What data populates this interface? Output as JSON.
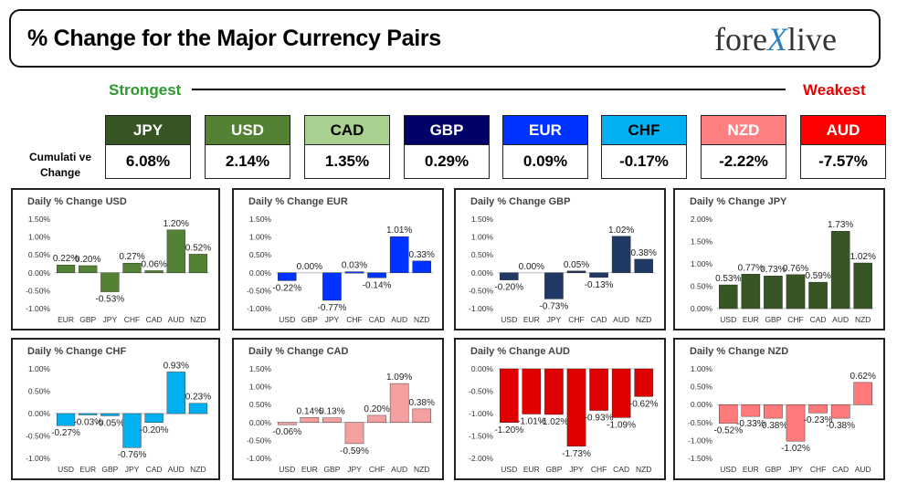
{
  "header": {
    "title": "% Change for the Major Currency Pairs",
    "logo_left": "fore",
    "logo_x": "X",
    "logo_right": "live"
  },
  "ranking": {
    "strongest_label": "Strongest",
    "weakest_label": "Weakest",
    "cumulative_label_line1": "Cumulati ve",
    "cumulative_label_line2": "Change",
    "currencies": [
      {
        "name": "JPY",
        "value": "6.08%",
        "color": "#375623"
      },
      {
        "name": "USD",
        "value": "2.14%",
        "color": "#548235"
      },
      {
        "name": "CAD",
        "value": "1.35%",
        "color": "#a9d08e",
        "text_color": "#000000"
      },
      {
        "name": "GBP",
        "value": "0.29%",
        "color": "#000066"
      },
      {
        "name": "EUR",
        "value": "0.09%",
        "color": "#0033ff"
      },
      {
        "name": "CHF",
        "value": "-0.17%",
        "color": "#00b0f0",
        "text_color": "#000000"
      },
      {
        "name": "NZD",
        "value": "-2.22%",
        "color": "#ff8080"
      },
      {
        "name": "AUD",
        "value": "-7.57%",
        "color": "#ff0000"
      }
    ]
  },
  "chart_data": [
    {
      "type": "bar",
      "title": "Daily % Change USD",
      "categories": [
        "EUR",
        "GBP",
        "JPY",
        "CHF",
        "CAD",
        "AUD",
        "NZD"
      ],
      "values": [
        0.22,
        0.2,
        -0.53,
        0.27,
        0.06,
        1.2,
        0.52
      ],
      "labels": [
        "0.22%",
        "0.20%",
        "-0.53%",
        "0.27%",
        "0.06%",
        "1.20%",
        "0.52%"
      ],
      "ylim": [
        -1.0,
        1.5
      ],
      "yticks": [
        "1.50%",
        "1.00%",
        "0.50%",
        "0.00%",
        "-0.50%",
        "-1.00%"
      ],
      "color": "#548235"
    },
    {
      "type": "bar",
      "title": "Daily % Change EUR",
      "categories": [
        "USD",
        "GBP",
        "JPY",
        "CHF",
        "CAD",
        "AUD",
        "NZD"
      ],
      "values": [
        -0.22,
        0.0,
        -0.77,
        0.03,
        -0.14,
        1.01,
        0.33
      ],
      "labels": [
        "-0.22%",
        "0.00%",
        "-0.77%",
        "0.03%",
        "-0.14%",
        "1.01%",
        "0.33%"
      ],
      "ylim": [
        -1.0,
        1.5
      ],
      "yticks": [
        "1.50%",
        "1.00%",
        "0.50%",
        "0.00%",
        "-0.50%",
        "-1.00%"
      ],
      "color": "#0033ff"
    },
    {
      "type": "bar",
      "title": "Daily % Change GBP",
      "categories": [
        "USD",
        "EUR",
        "JPY",
        "CHF",
        "CAD",
        "AUD",
        "NZD"
      ],
      "values": [
        -0.2,
        0.0,
        -0.73,
        0.05,
        -0.13,
        1.02,
        0.38
      ],
      "labels": [
        "-0.20%",
        "0.00%",
        "-0.73%",
        "0.05%",
        "-0.13%",
        "1.02%",
        "0.38%"
      ],
      "ylim": [
        -1.0,
        1.5
      ],
      "yticks": [
        "1.50%",
        "1.00%",
        "0.50%",
        "0.00%",
        "-0.50%",
        "-1.00%"
      ],
      "color": "#1f3864"
    },
    {
      "type": "bar",
      "title": "Daily % Change JPY",
      "categories": [
        "USD",
        "EUR",
        "GBP",
        "CHF",
        "CAD",
        "AUD",
        "NZD"
      ],
      "values": [
        0.53,
        0.77,
        0.73,
        0.76,
        0.59,
        1.73,
        1.02
      ],
      "labels": [
        "0.53%",
        "0.77%",
        "0.73%",
        "0.76%",
        "0.59%",
        "1.73%",
        "1.02%"
      ],
      "ylim": [
        0,
        2.0
      ],
      "yticks": [
        "2.00%",
        "1.50%",
        "1.00%",
        "0.50%",
        "0.00%"
      ],
      "color": "#375623"
    },
    {
      "type": "bar",
      "title": "Daily % Change CHF",
      "categories": [
        "USD",
        "EUR",
        "GBP",
        "JPY",
        "CAD",
        "AUD",
        "NZD"
      ],
      "values": [
        -0.27,
        -0.03,
        -0.05,
        -0.76,
        -0.2,
        0.93,
        0.23
      ],
      "labels": [
        "-0.27%",
        "-0.03%",
        "-0.05%",
        "-0.76%",
        "-0.20%",
        "0.93%",
        "0.23%"
      ],
      "ylim": [
        -1.0,
        1.0
      ],
      "yticks": [
        "1.00%",
        "0.50%",
        "0.00%",
        "-0.50%",
        "-1.00%"
      ],
      "color": "#00b0f0"
    },
    {
      "type": "bar",
      "title": "Daily % Change CAD",
      "categories": [
        "USD",
        "EUR",
        "GBP",
        "JPY",
        "CHF",
        "AUD",
        "NZD"
      ],
      "values": [
        -0.06,
        0.14,
        0.13,
        -0.59,
        0.2,
        1.09,
        0.38
      ],
      "labels": [
        "-0.06%",
        "0.14%",
        "0.13%",
        "-0.59%",
        "0.20%",
        "1.09%",
        "0.38%"
      ],
      "ylim": [
        -1.0,
        1.5
      ],
      "yticks": [
        "1.50%",
        "1.00%",
        "0.50%",
        "0.00%",
        "-0.50%",
        "-1.00%"
      ],
      "color": "#f4a0a0"
    },
    {
      "type": "bar",
      "title": "Daily % Change AUD",
      "categories": [
        "USD",
        "EUR",
        "GBP",
        "JPY",
        "CHF",
        "CAD",
        "NZD"
      ],
      "values": [
        -1.2,
        -1.01,
        -1.02,
        -1.73,
        -0.93,
        -1.09,
        -0.62
      ],
      "labels": [
        "-1.20%",
        "-1.01%",
        "-1.02%",
        "-1.73%",
        "-0.93%",
        "-1.09%",
        "-0.62%"
      ],
      "ylim": [
        -2.0,
        0
      ],
      "yticks": [
        "0.00%",
        "-0.50%",
        "-1.00%",
        "-1.50%",
        "-2.00%"
      ],
      "color": "#e00000"
    },
    {
      "type": "bar",
      "title": "Daily % Change NZD",
      "categories": [
        "USD",
        "EUR",
        "GBP",
        "JPY",
        "CHF",
        "CAD",
        "AUD"
      ],
      "values": [
        -0.52,
        -0.33,
        -0.38,
        -1.02,
        -0.23,
        -0.38,
        0.62
      ],
      "labels": [
        "-0.52%",
        "-0.33%",
        "-0.38%",
        "-1.02%",
        "-0.23%",
        "-0.38%",
        "0.62%"
      ],
      "ylim": [
        -1.5,
        1.0
      ],
      "yticks": [
        "1.00%",
        "0.50%",
        "0.00%",
        "-0.50%",
        "-1.00%",
        "-1.50%"
      ],
      "color": "#ff7a7a"
    }
  ]
}
